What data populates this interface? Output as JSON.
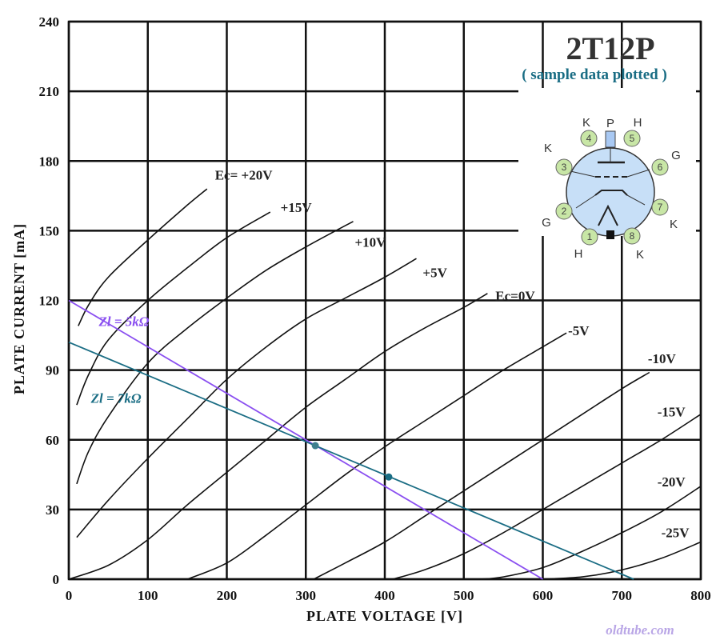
{
  "chart_data": {
    "type": "line",
    "title": "2T12P",
    "subtitle": "( sample data plotted )",
    "xlabel": "PLATE  VOLTAGE  [V]",
    "ylabel": "PLATE CURRENT  [mA]",
    "xlim": [
      0,
      800
    ],
    "ylim": [
      0,
      240
    ],
    "x_ticks": [
      "0",
      "100",
      "200",
      "300",
      "400",
      "500",
      "600",
      "700",
      "800"
    ],
    "y_ticks": [
      "0",
      "30",
      "60",
      "90",
      "120",
      "150",
      "180",
      "210",
      "240"
    ],
    "grid": true,
    "watermark": "oldtube.com",
    "series": [
      {
        "name": "Ec= +20V",
        "label_at": [
          185,
          172
        ],
        "points": [
          [
            12,
            109
          ],
          [
            25,
            118
          ],
          [
            50,
            130
          ],
          [
            100,
            146
          ],
          [
            150,
            161
          ],
          [
            175,
            168
          ]
        ]
      },
      {
        "name": "+15V",
        "label_at": [
          268,
          158
        ],
        "points": [
          [
            10,
            75
          ],
          [
            25,
            88
          ],
          [
            50,
            103
          ],
          [
            100,
            120
          ],
          [
            150,
            134
          ],
          [
            200,
            147
          ],
          [
            255,
            158
          ]
        ]
      },
      {
        "name": "+10V",
        "label_at": [
          362,
          143
        ],
        "points": [
          [
            10,
            41
          ],
          [
            25,
            55
          ],
          [
            50,
            70
          ],
          [
            100,
            93
          ],
          [
            150,
            108
          ],
          [
            200,
            121
          ],
          [
            250,
            133
          ],
          [
            300,
            143
          ],
          [
            360,
            154
          ]
        ]
      },
      {
        "name": "+5V",
        "label_at": [
          448,
          130
        ],
        "points": [
          [
            10,
            18
          ],
          [
            50,
            34
          ],
          [
            100,
            52
          ],
          [
            150,
            69
          ],
          [
            200,
            86
          ],
          [
            250,
            100
          ],
          [
            300,
            112
          ],
          [
            350,
            121
          ],
          [
            400,
            130
          ],
          [
            440,
            138
          ]
        ]
      },
      {
        "name": "Ec=0V",
        "label_at": [
          540,
          120
        ],
        "points": [
          [
            0,
            0
          ],
          [
            50,
            6
          ],
          [
            100,
            17
          ],
          [
            150,
            32
          ],
          [
            200,
            46
          ],
          [
            250,
            60
          ],
          [
            300,
            74
          ],
          [
            350,
            86
          ],
          [
            400,
            98
          ],
          [
            450,
            108
          ],
          [
            500,
            117
          ],
          [
            530,
            123
          ]
        ]
      },
      {
        "name": "-5V",
        "label_at": [
          632,
          105
        ],
        "points": [
          [
            150,
            0
          ],
          [
            200,
            7
          ],
          [
            250,
            19
          ],
          [
            300,
            32
          ],
          [
            350,
            45
          ],
          [
            400,
            57
          ],
          [
            450,
            68
          ],
          [
            500,
            79
          ],
          [
            550,
            90
          ],
          [
            600,
            100
          ],
          [
            630,
            106
          ]
        ]
      },
      {
        "name": "-10V",
        "label_at": [
          733,
          93
        ],
        "points": [
          [
            310,
            0
          ],
          [
            350,
            7
          ],
          [
            400,
            16
          ],
          [
            450,
            27
          ],
          [
            500,
            38
          ],
          [
            550,
            49
          ],
          [
            600,
            60
          ],
          [
            650,
            71
          ],
          [
            700,
            82
          ],
          [
            735,
            89
          ]
        ]
      },
      {
        "name": "-15V",
        "label_at": [
          745,
          70
        ],
        "points": [
          [
            410,
            0
          ],
          [
            450,
            4
          ],
          [
            500,
            11
          ],
          [
            550,
            20
          ],
          [
            600,
            30
          ],
          [
            650,
            40
          ],
          [
            700,
            50
          ],
          [
            750,
            60
          ],
          [
            800,
            71
          ]
        ]
      },
      {
        "name": "-20V",
        "label_at": [
          745,
          40
        ],
        "points": [
          [
            520,
            0
          ],
          [
            550,
            1
          ],
          [
            600,
            5
          ],
          [
            650,
            12
          ],
          [
            700,
            20
          ],
          [
            750,
            29
          ],
          [
            800,
            40
          ]
        ]
      },
      {
        "name": "-25V",
        "label_at": [
          750,
          18
        ],
        "points": [
          [
            600,
            0
          ],
          [
            650,
            1
          ],
          [
            700,
            4
          ],
          [
            750,
            9
          ],
          [
            800,
            16
          ]
        ]
      }
    ],
    "load_lines": [
      {
        "name": "Zl = 5kΩ",
        "color": "#8a4ff0",
        "points": [
          [
            0,
            120
          ],
          [
            600,
            0
          ]
        ],
        "label_at": [
          38,
          109
        ]
      },
      {
        "name": "Zl = 7kΩ",
        "color": "#1a6d84",
        "points": [
          [
            0,
            102
          ],
          [
            715,
            0
          ]
        ],
        "label_at": [
          28,
          76
        ]
      }
    ],
    "operating_points": [
      {
        "x": 312,
        "y": 57.5,
        "color": "#3e7f8e"
      },
      {
        "x": 405,
        "y": 44,
        "color": "#1a6d84"
      }
    ]
  },
  "tube_diagram": {
    "pins": [
      {
        "num": "1",
        "name": "H"
      },
      {
        "num": "2",
        "name": "G"
      },
      {
        "num": "3",
        "name": "K"
      },
      {
        "num": "4",
        "name": "K"
      },
      {
        "num": "5",
        "name": "H"
      },
      {
        "num": "6",
        "name": "G"
      },
      {
        "num": "7",
        "name": "K"
      },
      {
        "num": "8",
        "name": "K"
      }
    ],
    "top_label": "P"
  }
}
